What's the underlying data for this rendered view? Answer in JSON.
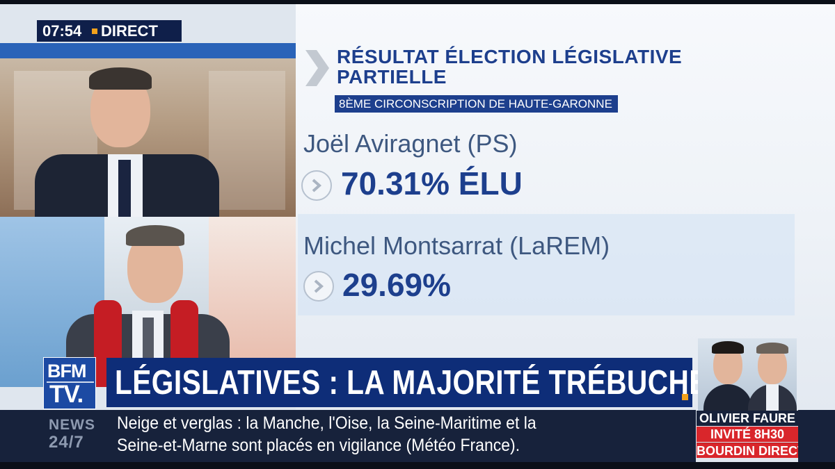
{
  "clock": {
    "time": "07:54",
    "live_label": "DIRECT"
  },
  "results": {
    "title_line1": "RÉSULTAT ÉLECTION LÉGISLATIVE",
    "title_line2": "PARTIELLE",
    "constituency": "8ÈME CIRCONSCRIPTION DE HAUTE-GARONNE",
    "candidates": [
      {
        "name": "Joël Aviragnet (PS)",
        "result": "70.31% ÉLU"
      },
      {
        "name": "Michel Montsarrat (LaREM)",
        "result": "29.69%"
      }
    ]
  },
  "channel_logo": {
    "line1": "BFM",
    "line2": "TV."
  },
  "headline": "LÉGISLATIVES : LA MAJORITÉ TRÉBUCHE",
  "ticker": {
    "brand_line1": "NEWS",
    "brand_line2": "24/7",
    "text_line1": "Neige et verglas : la Manche, l'Oise, la Seine-Maritime et la",
    "text_line2": "Seine-et-Marne sont placés en vigilance (Météo France)."
  },
  "guest": {
    "name": "OLIVIER FAURE",
    "invite": "INVITÉ 8H30",
    "show": "BOURDIN DIRECT"
  },
  "colors": {
    "brand_blue": "#1d3f8d",
    "accent_orange": "#f2a11c",
    "red": "#d9262b",
    "ticker_bg": "#17223b"
  },
  "icons": [
    "chevron-right-icon",
    "circle-chevron-icon"
  ]
}
